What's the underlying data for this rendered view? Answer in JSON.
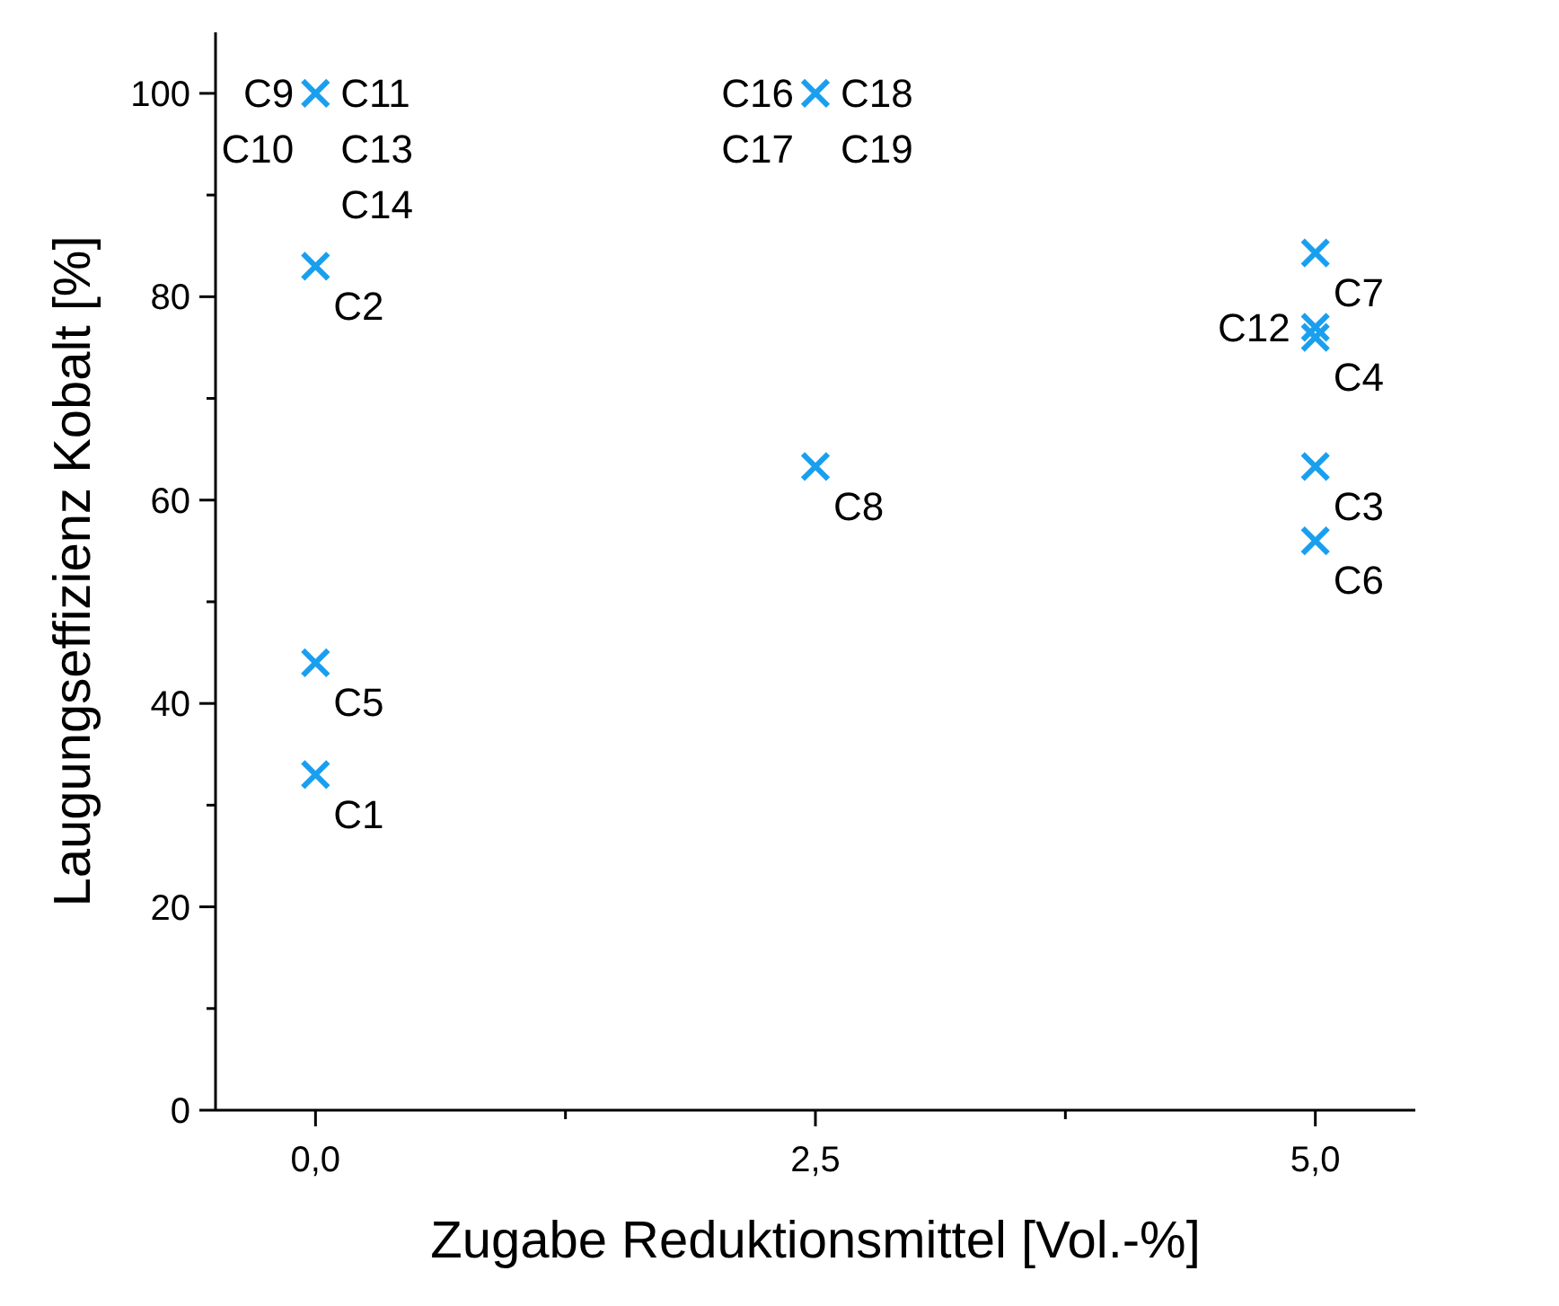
{
  "chart_data": {
    "type": "scatter",
    "xlabel": "Zugabe Reduktionsmittel [Vol.-%]",
    "ylabel": "Laugungseffizienz Kobalt [%]",
    "xlim": [
      -0.5,
      5.5
    ],
    "ylim": [
      0,
      106
    ],
    "xticks": [
      {
        "value": 0,
        "label": "0,0"
      },
      {
        "value": 1.25,
        "label": null
      },
      {
        "value": 2.5,
        "label": "2,5"
      },
      {
        "value": 3.75,
        "label": null
      },
      {
        "value": 5,
        "label": "5,0"
      }
    ],
    "yticks": [
      0,
      {
        "value": 10,
        "label": null
      },
      20,
      {
        "value": 30,
        "label": null
      },
      40,
      {
        "value": 50,
        "label": null
      },
      60,
      {
        "value": 70,
        "label": null
      },
      80,
      {
        "value": 90,
        "label": null
      },
      100
    ],
    "grid": false,
    "marker": "cross",
    "series": [
      {
        "color": "#1a9fef",
        "x": [
          0,
          0,
          0,
          0,
          2.5,
          2.5,
          5,
          5,
          5,
          5,
          5
        ],
        "values": [
          100,
          83,
          44,
          33,
          100,
          63.3,
          84.3,
          77,
          76,
          63.3,
          56
        ]
      }
    ],
    "annotations": [
      {
        "text": "C9",
        "x": 0,
        "y": 100
      },
      {
        "text": "C11",
        "x": 0,
        "y": 100
      },
      {
        "text": "C10",
        "x": 0,
        "y": 100
      },
      {
        "text": "C13",
        "x": 0,
        "y": 100
      },
      {
        "text": "C14",
        "x": 0,
        "y": 100
      },
      {
        "text": "C2",
        "x": 0,
        "y": 83
      },
      {
        "text": "C5",
        "x": 0,
        "y": 44
      },
      {
        "text": "C1",
        "x": 0,
        "y": 33
      },
      {
        "text": "C16",
        "x": 2.5,
        "y": 100
      },
      {
        "text": "C18",
        "x": 2.5,
        "y": 100
      },
      {
        "text": "C17",
        "x": 2.5,
        "y": 100
      },
      {
        "text": "C19",
        "x": 2.5,
        "y": 100
      },
      {
        "text": "C8",
        "x": 2.5,
        "y": 63.3
      },
      {
        "text": "C7",
        "x": 5,
        "y": 84.3
      },
      {
        "text": "C12",
        "x": 5,
        "y": 77
      },
      {
        "text": "C4",
        "x": 5,
        "y": 76
      },
      {
        "text": "C3",
        "x": 5,
        "y": 63.3
      },
      {
        "text": "C6",
        "x": 5,
        "y": 56
      }
    ]
  }
}
